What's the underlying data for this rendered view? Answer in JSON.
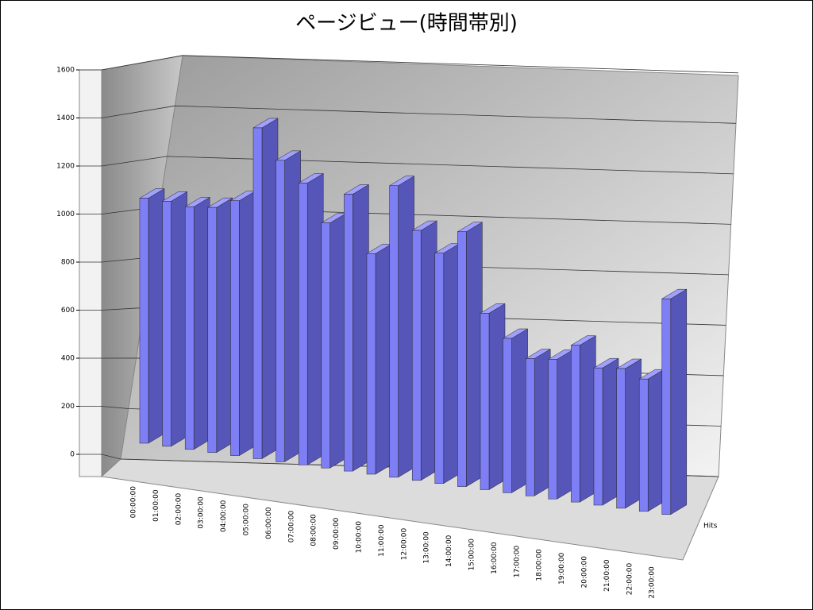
{
  "chart_data": {
    "type": "bar3d",
    "title": "ページビュー(時間帯別)",
    "categories": [
      "00:00:00",
      "01:00:00",
      "02:00:00",
      "03:00:00",
      "04:00:00",
      "05:00:00",
      "06:00:00",
      "07:00:00",
      "08:00:00",
      "09:00:00",
      "10:00:00",
      "11:00:00",
      "12:00:00",
      "13:00:00",
      "14:00:00",
      "15:00:00",
      "16:00:00",
      "17:00:00",
      "18:00:00",
      "19:00:00",
      "20:00:00",
      "21:00:00",
      "22:00:00",
      "23:00:00"
    ],
    "series": [
      {
        "name": "Hits",
        "color": "#7f7ff5",
        "values": [
          1000,
          1000,
          990,
          1000,
          1040,
          1350,
          1230,
          1150,
          1000,
          1130,
          900,
          1190,
          1020,
          940,
          1040,
          720,
          630,
          560,
          570,
          640,
          560,
          570,
          540,
          880
        ]
      }
    ],
    "ylim": [
      0,
      1600
    ],
    "yticks": [
      0,
      200,
      400,
      600,
      800,
      1000,
      1200,
      1400,
      1600
    ],
    "grid": true
  }
}
